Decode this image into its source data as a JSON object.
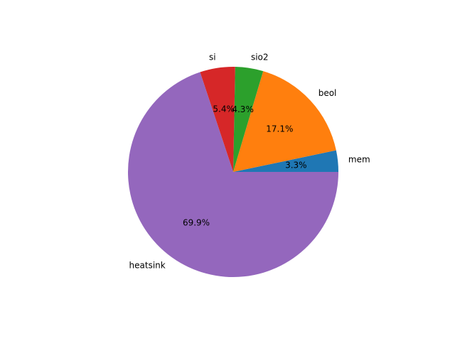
{
  "chart_data": {
    "type": "pie",
    "title": "",
    "start_angle": 0,
    "direction": "counterclockwise",
    "slices": [
      {
        "label": "mem",
        "value": 3.3,
        "pct_label": "3.3%",
        "color": "#1f77b4"
      },
      {
        "label": "beol",
        "value": 17.1,
        "pct_label": "17.1%",
        "color": "#ff7f0e"
      },
      {
        "label": "sio2",
        "value": 4.3,
        "pct_label": "4.3%",
        "color": "#2ca02c"
      },
      {
        "label": "si",
        "value": 5.4,
        "pct_label": "5.4%",
        "color": "#d62728"
      },
      {
        "label": "heatsink",
        "value": 69.9,
        "pct_label": "69.9%",
        "color": "#9467bd"
      }
    ]
  }
}
